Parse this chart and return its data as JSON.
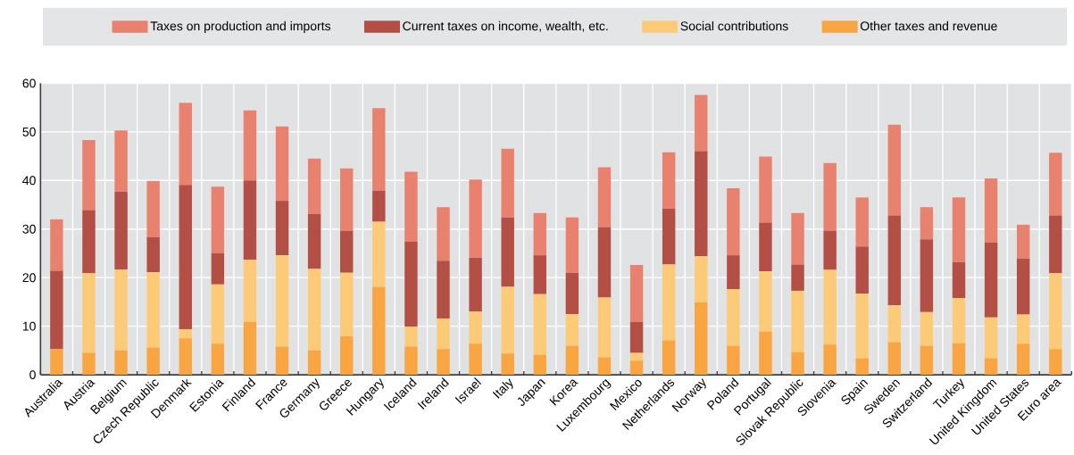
{
  "chart_data": {
    "type": "bar",
    "stacked": true,
    "legend": "top",
    "grid": true,
    "categories": [
      "Australia",
      "Austria",
      "Belgium",
      "Czech Republic",
      "Denmark",
      "Estonia",
      "Finland",
      "France",
      "Germany",
      "Greece",
      "Hungary",
      "Iceland",
      "Ireland",
      "Israel",
      "Italy",
      "Japan",
      "Korea",
      "Luxembourg",
      "Mexico",
      "Netherlands",
      "Norway",
      "Poland",
      "Portugal",
      "Slovak Republic",
      "Slovenia",
      "Spain",
      "Sweden",
      "Switzerland",
      "Turkey",
      "United Kingdom",
      "United States",
      "Euro area"
    ],
    "ylim": [
      0,
      60
    ],
    "yticks": [
      0,
      10,
      20,
      30,
      40,
      50,
      60
    ],
    "series": [
      {
        "name": "Other taxes and revenue",
        "color": "#f9a541",
        "values": [
          5.3,
          4.5,
          5.0,
          5.6,
          7.5,
          6.4,
          10.9,
          5.8,
          5.0,
          7.9,
          18.1,
          5.8,
          5.3,
          6.4,
          4.4,
          4.1,
          6.0,
          3.6,
          2.9,
          7.1,
          14.9,
          6.0,
          8.9,
          4.6,
          6.2,
          3.4,
          6.7,
          6.0,
          6.5,
          3.4,
          6.4,
          5.3
        ]
      },
      {
        "name": "Social contributions",
        "color": "#fdcb78",
        "values": [
          0,
          16.4,
          16.7,
          15.5,
          1.9,
          12.2,
          12.8,
          18.8,
          16.8,
          13.1,
          13.4,
          4.1,
          6.3,
          6.6,
          13.7,
          12.5,
          6.5,
          12.3,
          1.6,
          15.6,
          9.5,
          11.6,
          12.4,
          12.7,
          15.4,
          13.3,
          7.6,
          6.9,
          9.3,
          8.4,
          6.0,
          15.6
        ]
      },
      {
        "name": "Current taxes on income, wealth, etc.",
        "color": "#b34f44",
        "values": [
          16.1,
          13.0,
          16.0,
          7.2,
          29.7,
          6.4,
          16.3,
          11.2,
          11.3,
          8.6,
          6.4,
          17.5,
          11.9,
          11.1,
          14.3,
          8.0,
          8.5,
          14.5,
          6.4,
          11.5,
          21.6,
          7.0,
          10.0,
          5.4,
          8.0,
          9.7,
          18.5,
          15.0,
          7.4,
          15.4,
          11.5,
          11.9
        ]
      },
      {
        "name": "Taxes on production and imports",
        "color": "#e8826f",
        "values": [
          10.6,
          14.4,
          12.6,
          11.6,
          16.9,
          13.7,
          14.4,
          15.3,
          11.4,
          12.9,
          17.0,
          14.4,
          11.0,
          16.1,
          14.1,
          8.7,
          11.4,
          12.3,
          11.7,
          11.6,
          11.6,
          13.8,
          13.6,
          10.6,
          14.0,
          10.1,
          18.7,
          6.6,
          13.3,
          13.2,
          7.0,
          12.9
        ]
      }
    ]
  }
}
